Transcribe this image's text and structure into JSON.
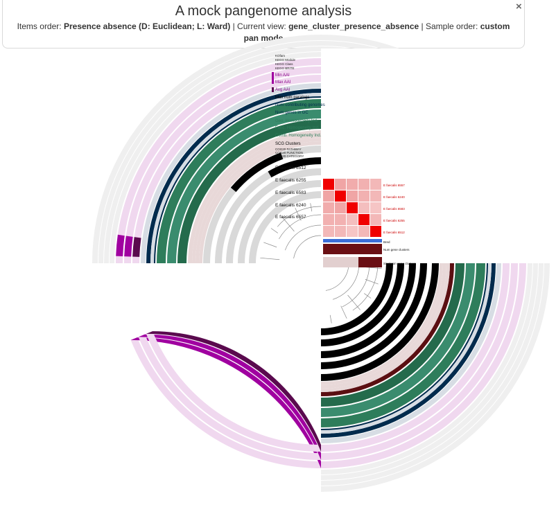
{
  "header": {
    "title": "A mock pangenome analysis",
    "items_order_label": "Items order:",
    "items_order_value": "Presence absence (D: Euclidean; L: Ward)",
    "sep1": "| Current view:",
    "current_view_value": "gene_cluster_presence_absence",
    "sep2": "| Sample order:",
    "sample_order_value": "custom",
    "mode": "pan mode",
    "close_symbol": "×"
  },
  "layers": [
    {
      "label": "KOfam",
      "color": "#000000"
    },
    {
      "label": "KEGG Module",
      "color": "#000000"
    },
    {
      "label": "KEGG Class",
      "color": "#000000"
    },
    {
      "label": "KEGG BRITE",
      "color": "#000000"
    },
    {
      "label": "Min AAI",
      "color": "#880088"
    },
    {
      "label": "Max AAI",
      "color": "#880088"
    },
    {
      "label": "Avg AAI",
      "color": "#880088"
    },
    {
      "label": "Max num paralogs",
      "color": "#000000"
    },
    {
      "label": "Num contributing genomes",
      "color": "#002b4d"
    },
    {
      "label": "Num genes in GC",
      "color": "#002b4d"
    },
    {
      "label": "Geo. Homogeneity Ind.",
      "color": "#2e7d5b"
    },
    {
      "label": "Func. Homogeneity Ind.",
      "color": "#2e7d5b"
    },
    {
      "label": "Comb. Homogeneity Ind.",
      "color": "#2e7d5b"
    },
    {
      "label": "SCG Clusters",
      "color": "#000000"
    },
    {
      "label": "COG20 PATHWAY",
      "color": "#000000"
    },
    {
      "label": "COG20 FUNCTION",
      "color": "#000000"
    },
    {
      "label": "COG20 CATEGORY",
      "color": "#000000"
    }
  ],
  "genomes": [
    "E faecalis 6512",
    "E faecalis 6255",
    "E faecalis 6583",
    "E faecalis 6240",
    "E faecalis 6557"
  ],
  "heatmap": {
    "rows": [
      "E faecalis 6557",
      "E faecalis 6240",
      "E faecalis 6583",
      "E faecalis 6255",
      "E faecalis 6512"
    ],
    "values": [
      [
        1.0,
        0.45,
        0.4,
        0.35,
        0.3
      ],
      [
        0.45,
        1.0,
        0.45,
        0.35,
        0.3
      ],
      [
        0.4,
        0.45,
        1.0,
        0.25,
        0.2
      ],
      [
        0.35,
        0.35,
        0.25,
        1.0,
        0.3
      ],
      [
        0.3,
        0.3,
        0.2,
        0.3,
        1.0
      ]
    ],
    "bar_labels": [
      "Bred",
      "Num gene clusters",
      "Singleton gene clusters"
    ]
  },
  "colors": {
    "green": "#10a010",
    "gray_ring": "#efefef",
    "pink": "#f0d8ef",
    "magenta": "#a000a0",
    "dark_purple": "#5a0a4e",
    "navy": "#002b4d",
    "light_blue_gray": "#d7dde4",
    "sea_green_1": "#3a8c6e",
    "sea_green_2": "#2e7d5b",
    "sea_green_3": "#246b4c",
    "maroon": "#5b0f12",
    "rose": "#e8d8d8",
    "black": "#000000",
    "light_gray": "#d9d9d9",
    "red": "#e00000"
  }
}
